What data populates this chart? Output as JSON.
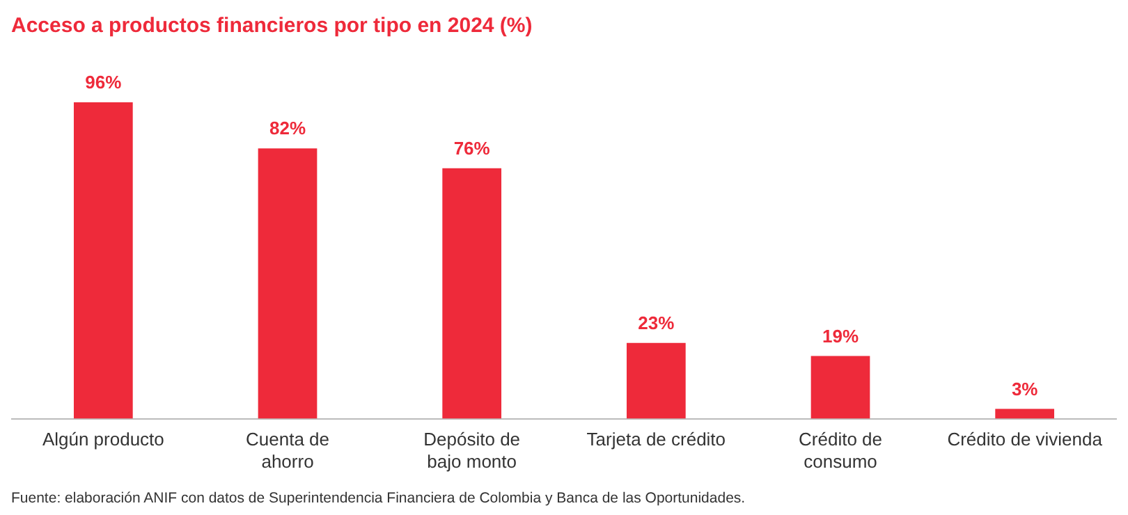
{
  "chart_data": {
    "type": "bar",
    "title": "Acceso a productos financieros por tipo en 2024 (%)",
    "categories": [
      "Algún producto",
      "Cuenta de\nahorro",
      "Depósito de\nbajo monto",
      "Tarjeta de crédito",
      "Crédito de\nconsumo",
      "Crédito de vivienda"
    ],
    "values": [
      96,
      82,
      76,
      23,
      19,
      3
    ],
    "value_labels": [
      "96%",
      "82%",
      "76%",
      "23%",
      "19%",
      "3%"
    ],
    "color": "#ee2a3a",
    "annotations": [
      "Fuente: elaboración ANIF con datos de Superintendencia Financiera de Colombia y Banca de las Oportunidades."
    ],
    "grid": false,
    "legend": false
  }
}
